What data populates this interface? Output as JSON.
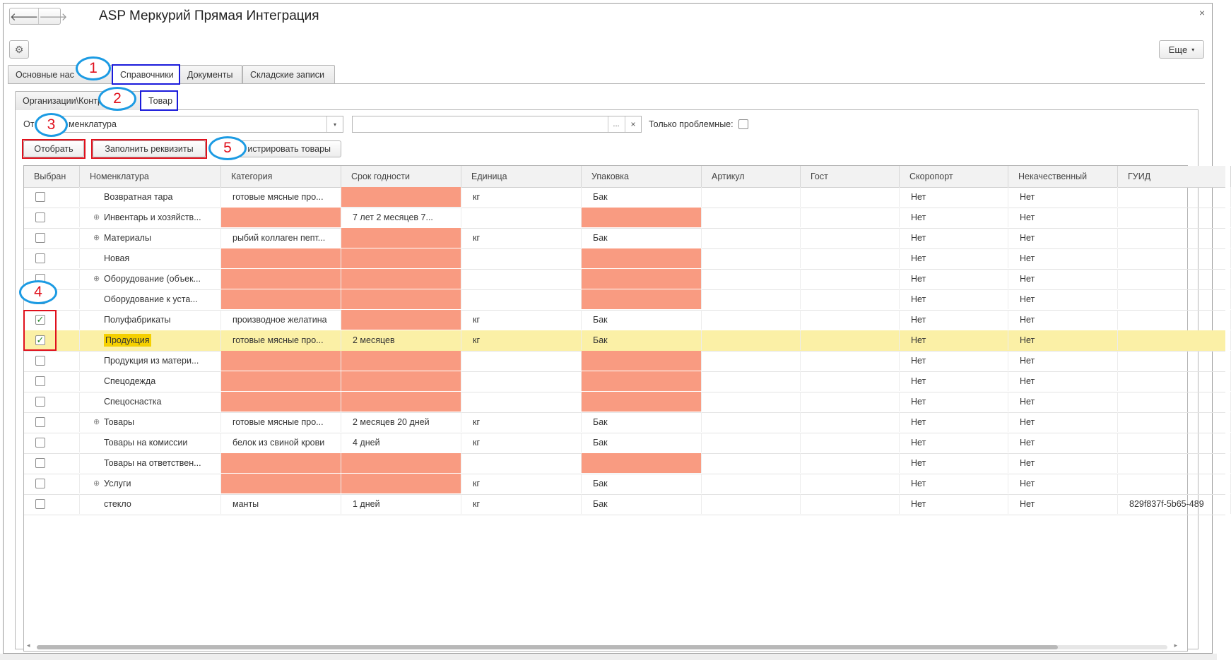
{
  "window": {
    "title": "ASP Меркурий Прямая Интеграция",
    "back_glyph": "🡐",
    "forward_glyph": "🡒",
    "close_glyph": "×",
    "gear_glyph": "⚙",
    "more_label": "Еще",
    "more_caret": "▾"
  },
  "tabs": [
    {
      "label": "Основные нас"
    },
    {
      "label": "Справочники"
    },
    {
      "label": "Документы"
    },
    {
      "label": "Складские записи"
    }
  ],
  "subtabs": [
    {
      "label": "Организации\\Контр"
    },
    {
      "label": "Товар"
    }
  ],
  "filter": {
    "label": "Отб",
    "combo_value": "менклатура",
    "dropdown_glyph": "▾",
    "dots_glyph": "...",
    "clear_glyph": "×",
    "problems_label": "Только проблемные:"
  },
  "actions": {
    "select_label": "Отобрать",
    "fill_label": "Заполнить реквизиты",
    "register_label": "истрировать товары"
  },
  "markers": [
    "1",
    "2",
    "3",
    "4",
    "5"
  ],
  "grid": {
    "columns": [
      "Выбран",
      "Номенклатура",
      "Категория",
      "Срок годности",
      "Единица",
      "Упаковка",
      "Артикул",
      "Гост",
      "Скоропорт",
      "Некачественный",
      "ГУИД"
    ],
    "check_glyph": "✓",
    "expand_glyph": "⊕",
    "rows": [
      {
        "checked": false,
        "group": false,
        "name": "Возвратная тара",
        "category": "готовые мясные про...",
        "shelf": "",
        "unit": "кг",
        "pack": "Бак",
        "article": "",
        "gost": "",
        "perishable": "Нет",
        "defective": "Нет",
        "guid": "",
        "warn": [
          false,
          true,
          false,
          false
        ]
      },
      {
        "checked": false,
        "group": true,
        "name": "Инвентарь и хозяйств...",
        "category": "",
        "shelf": "7 лет 2 месяцев 7...",
        "unit": "",
        "pack": "",
        "article": "",
        "gost": "",
        "perishable": "Нет",
        "defective": "Нет",
        "guid": "",
        "warn": [
          true,
          false,
          false,
          true
        ]
      },
      {
        "checked": false,
        "group": true,
        "name": "Материалы",
        "category": "рыбий коллаген пепт...",
        "shelf": "",
        "unit": "кг",
        "pack": "Бак",
        "article": "",
        "gost": "",
        "perishable": "Нет",
        "defective": "Нет",
        "guid": "",
        "warn": [
          false,
          true,
          false,
          false
        ]
      },
      {
        "checked": false,
        "group": false,
        "name": "Новая",
        "category": "",
        "shelf": "",
        "unit": "",
        "pack": "",
        "article": "",
        "gost": "",
        "perishable": "Нет",
        "defective": "Нет",
        "guid": "",
        "warn": [
          true,
          true,
          false,
          true
        ]
      },
      {
        "checked": false,
        "group": true,
        "name": "Оборудование (объек...",
        "category": "",
        "shelf": "",
        "unit": "",
        "pack": "",
        "article": "",
        "gost": "",
        "perishable": "Нет",
        "defective": "Нет",
        "guid": "",
        "warn": [
          true,
          true,
          false,
          true
        ]
      },
      {
        "checked": false,
        "group": false,
        "name": "Оборудование к уста...",
        "category": "",
        "shelf": "",
        "unit": "",
        "pack": "",
        "article": "",
        "gost": "",
        "perishable": "Нет",
        "defective": "Нет",
        "guid": "",
        "warn": [
          true,
          true,
          false,
          true
        ]
      },
      {
        "checked": true,
        "group": false,
        "name": "Полуфабрикаты",
        "category": "производное желатина",
        "shelf": "",
        "unit": "кг",
        "pack": "Бак",
        "article": "",
        "gost": "",
        "perishable": "Нет",
        "defective": "Нет",
        "guid": "",
        "warn": [
          false,
          true,
          false,
          false
        ]
      },
      {
        "checked": true,
        "group": false,
        "selected": true,
        "name": "Продукция",
        "category": "готовые мясные про...",
        "shelf": "2 месяцев",
        "unit": "кг",
        "pack": "Бак",
        "article": "",
        "gost": "",
        "perishable": "Нет",
        "defective": "Нет",
        "guid": "",
        "warn": [
          false,
          false,
          false,
          false
        ]
      },
      {
        "checked": false,
        "group": false,
        "name": "Продукция из матери...",
        "category": "",
        "shelf": "",
        "unit": "",
        "pack": "",
        "article": "",
        "gost": "",
        "perishable": "Нет",
        "defective": "Нет",
        "guid": "",
        "warn": [
          true,
          true,
          false,
          true
        ]
      },
      {
        "checked": false,
        "group": false,
        "name": "Спецодежда",
        "category": "",
        "shelf": "",
        "unit": "",
        "pack": "",
        "article": "",
        "gost": "",
        "perishable": "Нет",
        "defective": "Нет",
        "guid": "",
        "warn": [
          true,
          true,
          false,
          true
        ]
      },
      {
        "checked": false,
        "group": false,
        "name": "Спецоснастка",
        "category": "",
        "shelf": "",
        "unit": "",
        "pack": "",
        "article": "",
        "gost": "",
        "perishable": "Нет",
        "defective": "Нет",
        "guid": "",
        "warn": [
          true,
          true,
          false,
          true
        ]
      },
      {
        "checked": false,
        "group": true,
        "name": "Товары",
        "category": "готовые мясные про...",
        "shelf": "2 месяцев 20 дней",
        "unit": "кг",
        "pack": "Бак",
        "article": "",
        "gost": "",
        "perishable": "Нет",
        "defective": "Нет",
        "guid": "",
        "warn": [
          false,
          false,
          false,
          false
        ]
      },
      {
        "checked": false,
        "group": false,
        "name": "Товары на комиссии",
        "category": "белок из свиной крови",
        "shelf": "4 дней",
        "unit": "кг",
        "pack": "Бак",
        "article": "",
        "gost": "",
        "perishable": "Нет",
        "defective": "Нет",
        "guid": "",
        "warn": [
          false,
          false,
          false,
          false
        ]
      },
      {
        "checked": false,
        "group": false,
        "name": "Товары на ответствен...",
        "category": "",
        "shelf": "",
        "unit": "",
        "pack": "",
        "article": "",
        "gost": "",
        "perishable": "Нет",
        "defective": "Нет",
        "guid": "",
        "warn": [
          true,
          true,
          false,
          true
        ]
      },
      {
        "checked": false,
        "group": true,
        "name": "Услуги",
        "category": "",
        "shelf": "",
        "unit": "кг",
        "pack": "Бак",
        "article": "",
        "gost": "",
        "perishable": "Нет",
        "defective": "Нет",
        "guid": "",
        "warn": [
          true,
          true,
          false,
          false
        ]
      },
      {
        "checked": false,
        "group": false,
        "name": "стекло",
        "category": "манты",
        "shelf": "1 дней",
        "unit": "кг",
        "pack": "Бак",
        "article": "",
        "gost": "",
        "perishable": "Нет",
        "defective": "Нет",
        "guid": "829f837f-5b65-489",
        "warn": [
          false,
          false,
          false,
          false
        ]
      }
    ]
  },
  "scroll": {
    "left_glyph": "◂",
    "right_glyph": "▸"
  },
  "colors": {
    "warn": "#f99b81",
    "selected_row": "#fbf0a6",
    "name_highlight": "#f5d000",
    "blue_frame": "#1a1adb",
    "red_frame": "#e0101c",
    "marker_ring": "#1c9be3"
  }
}
